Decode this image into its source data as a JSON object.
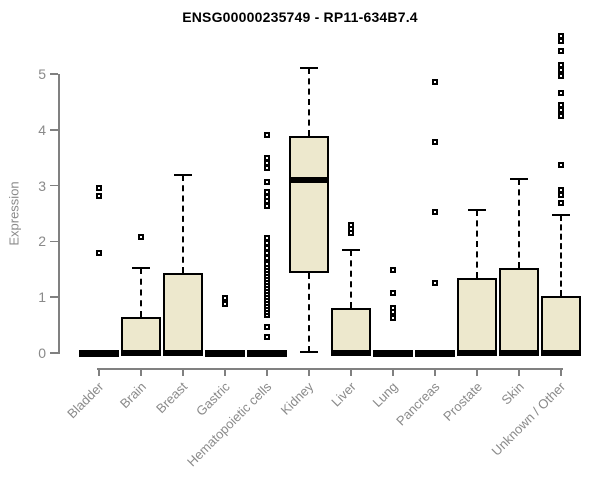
{
  "chart_data": {
    "type": "boxplot",
    "title": "ENSG00000235749 - RP11-634B7.4",
    "xlabel": "",
    "ylabel": "Expression",
    "ylim": [
      0,
      5.7
    ],
    "yticks": [
      0,
      1,
      2,
      3,
      4,
      5
    ],
    "grid": false,
    "legend": "none",
    "box_fill_color": "#ede8cd",
    "box_line_color": "#000000",
    "axis_color": "#808080",
    "label_color": "#8a8a8a",
    "categories": [
      "Bladder",
      "Brain",
      "Breast",
      "Gastric",
      "Hematopoietic cells",
      "Kidney",
      "Liver",
      "Lung",
      "Pancreas",
      "Prostate",
      "Skin",
      "Unknown / Other"
    ],
    "boxes": [
      {
        "category": "Bladder",
        "q1": 0,
        "median": 0,
        "q3": 0,
        "whisker_low": 0,
        "whisker_high": 0,
        "outliers": [
          1.8,
          2.81,
          2.95
        ]
      },
      {
        "category": "Brain",
        "q1": 0,
        "median": 0,
        "q3": 0.64,
        "whisker_low": 0,
        "whisker_high": 1.53,
        "outliers": [
          2.08
        ]
      },
      {
        "category": "Breast",
        "q1": 0,
        "median": 0,
        "q3": 1.44,
        "whisker_low": 0,
        "whisker_high": 3.19,
        "outliers": []
      },
      {
        "category": "Gastric",
        "q1": 0,
        "median": 0,
        "q3": 0,
        "whisker_low": 0,
        "whisker_high": 0,
        "outliers": [
          0.87,
          0.99
        ]
      },
      {
        "category": "Hematopoietic cells",
        "q1": 0,
        "median": 0,
        "q3": 0,
        "whisker_low": 0,
        "whisker_high": 0,
        "outliers": [
          0.29,
          0.47,
          0.68,
          0.74,
          0.79,
          0.85,
          0.9,
          0.95,
          1.01,
          1.06,
          1.11,
          1.17,
          1.22,
          1.28,
          1.33,
          1.38,
          1.44,
          1.49,
          1.54,
          1.6,
          1.7,
          1.79,
          1.88,
          1.97,
          2.06,
          2.63,
          2.72,
          2.8,
          2.89,
          3.06,
          3.31,
          3.4,
          3.49,
          3.91
        ]
      },
      {
        "category": "Kidney",
        "q1": 1.43,
        "median": 3.1,
        "q3": 3.89,
        "whisker_low": 0.02,
        "whisker_high": 5.11,
        "outliers": []
      },
      {
        "category": "Liver",
        "q1": 0,
        "median": 0,
        "q3": 0.81,
        "whisker_low": 0,
        "whisker_high": 1.85,
        "outliers": [
          2.15,
          2.22,
          2.29
        ]
      },
      {
        "category": "Lung",
        "q1": 0,
        "median": 0,
        "q3": 0,
        "whisker_low": 0,
        "whisker_high": 0,
        "outliers": [
          0.63,
          0.74,
          0.81,
          1.08,
          1.49
        ]
      },
      {
        "category": "Pancreas",
        "q1": 0,
        "median": 0,
        "q3": 0,
        "whisker_low": 0,
        "whisker_high": 0,
        "outliers": [
          1.25,
          2.53,
          3.78,
          4.86
        ]
      },
      {
        "category": "Prostate",
        "q1": 0,
        "median": 0,
        "q3": 1.34,
        "whisker_low": 0,
        "whisker_high": 2.56,
        "outliers": []
      },
      {
        "category": "Skin",
        "q1": 0,
        "median": 0,
        "q3": 1.52,
        "whisker_low": 0,
        "whisker_high": 3.12,
        "outliers": []
      },
      {
        "category": "Unknown / Other",
        "q1": 0,
        "median": 0,
        "q3": 1.02,
        "whisker_low": 0,
        "whisker_high": 2.47,
        "outliers": [
          2.69,
          2.84,
          2.92,
          3.37,
          4.25,
          4.36,
          4.44,
          4.66,
          4.96,
          5.07,
          5.16,
          5.41,
          5.6,
          5.68
        ]
      }
    ]
  }
}
